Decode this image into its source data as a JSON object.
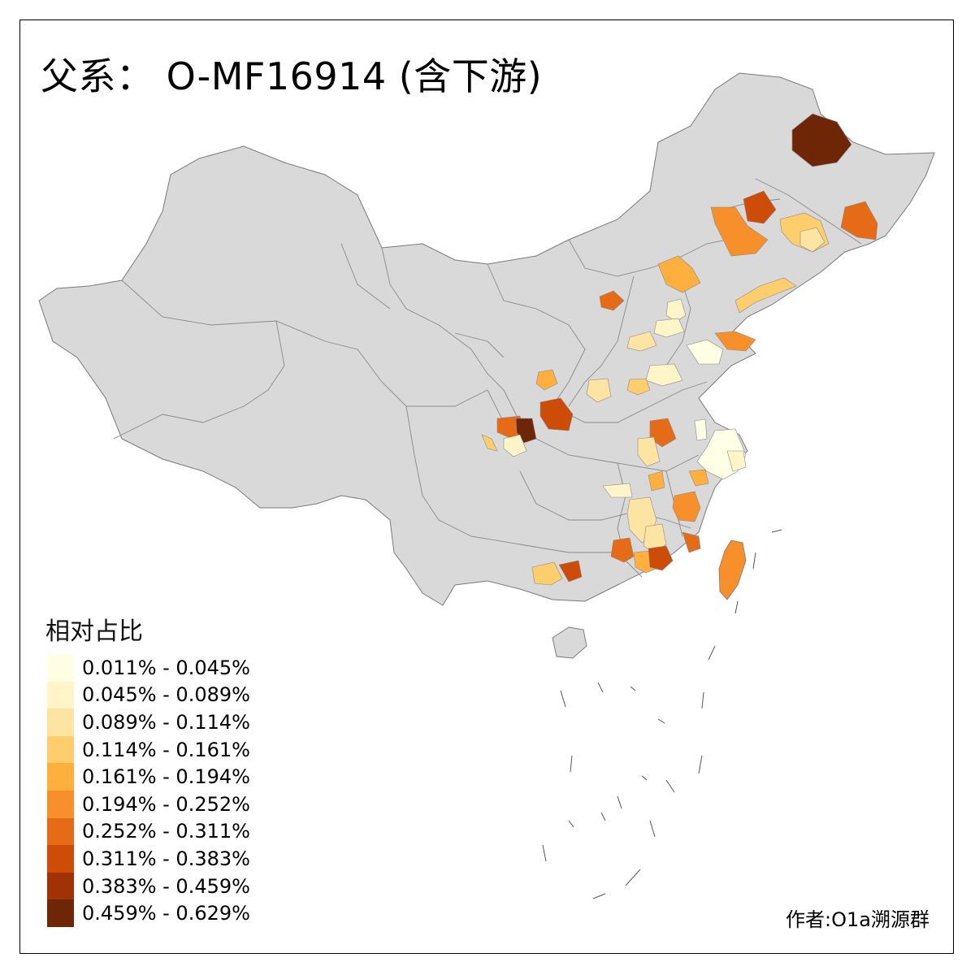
{
  "title": "父系： O-MF16914 (含下游)",
  "legend": {
    "title": "相对占比",
    "items": [
      {
        "label": "0.011% - 0.045%",
        "color": "#ffffe5"
      },
      {
        "label": "0.045% - 0.089%",
        "color": "#fff5c9"
      },
      {
        "label": "0.089% - 0.114%",
        "color": "#fee4a3"
      },
      {
        "label": "0.114% - 0.161%",
        "color": "#fece6c"
      },
      {
        "label": "0.161% - 0.194%",
        "color": "#feaf3e"
      },
      {
        "label": "0.194% - 0.252%",
        "color": "#f7902a"
      },
      {
        "label": "0.252% - 0.311%",
        "color": "#e56b17"
      },
      {
        "label": "0.311% - 0.383%",
        "color": "#cc4c08"
      },
      {
        "label": "0.383% - 0.459%",
        "color": "#a03305"
      },
      {
        "label": "0.459% - 0.629%",
        "color": "#6e2607"
      }
    ]
  },
  "author": "作者:O1a溯源群",
  "colors": {
    "base_region": "#d9d9d9",
    "border": "#7a7a7a",
    "frame": "#000000"
  }
}
